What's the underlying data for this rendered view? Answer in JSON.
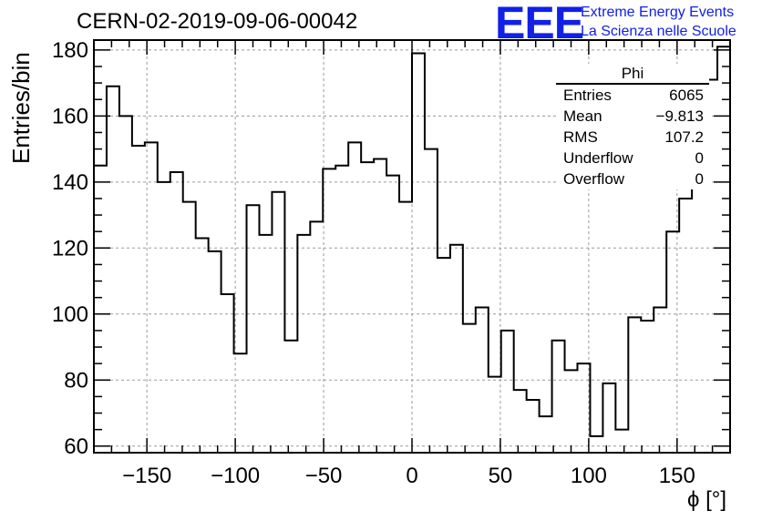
{
  "header": {
    "title": "CERN-02-2019-09-06-00042",
    "logo_text": "EEE",
    "logo_line1": "Extreme Energy Events",
    "logo_line2": "La Scienza nelle Scuole"
  },
  "stats": {
    "name": "Phi",
    "rows": [
      {
        "label": "Entries",
        "value": "6065"
      },
      {
        "label": "Mean",
        "value": "−9.813"
      },
      {
        "label": "RMS",
        "value": "107.2"
      },
      {
        "label": "Underflow",
        "value": "0"
      },
      {
        "label": "Overflow",
        "value": "0"
      }
    ]
  },
  "chart_data": {
    "type": "bar",
    "style": "step-histogram",
    "title": "CERN-02-2019-09-06-00042",
    "xlabel": "ϕ [°]",
    "ylabel": "Entries/bin",
    "xlim": [
      -180,
      180
    ],
    "ylim": [
      58,
      183
    ],
    "bin_width": 7.2,
    "bin_start": -180,
    "values": [
      145,
      169,
      160,
      151,
      152,
      140,
      143,
      134,
      123,
      119,
      106,
      88,
      133,
      124,
      137,
      92,
      124,
      128,
      144,
      145,
      152,
      146,
      147,
      142,
      134,
      179,
      150,
      117,
      121,
      97,
      102,
      81,
      95,
      77,
      74,
      69,
      92,
      83,
      85,
      63,
      79,
      65,
      99,
      98,
      102,
      125,
      135,
      147,
      171,
      181
    ],
    "xticks": [
      -150,
      -100,
      -50,
      0,
      50,
      100,
      150
    ],
    "xtick_labels": [
      "−150",
      "−100",
      "−50",
      "0",
      "50",
      "100",
      "150"
    ],
    "yticks": [
      60,
      80,
      100,
      120,
      140,
      160,
      180
    ],
    "ytick_labels": [
      "60",
      "80",
      "100",
      "120",
      "140",
      "160",
      "180"
    ],
    "grid": true,
    "legend": "stats box top-right",
    "color": "#000000"
  }
}
